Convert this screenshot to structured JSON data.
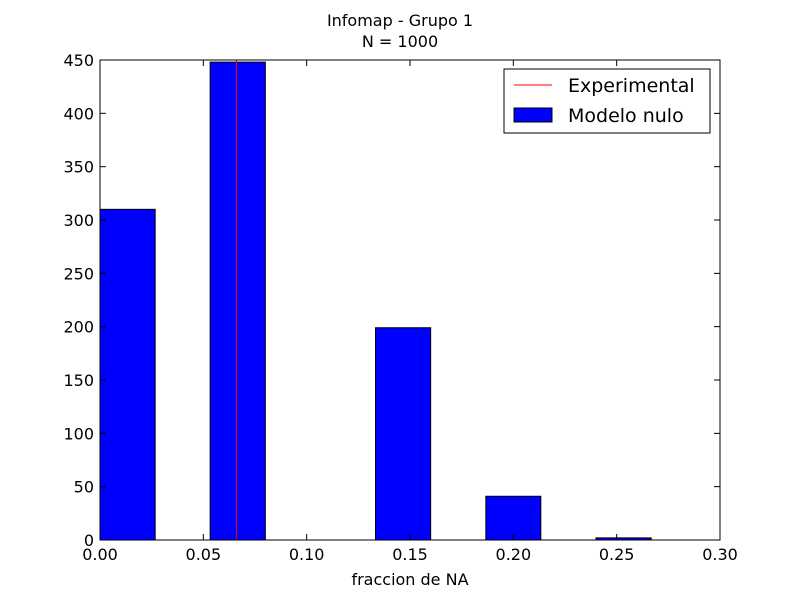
{
  "chart_data": {
    "type": "bar",
    "title": "Infomap - Grupo 1",
    "subtitle": "N = 1000",
    "xlabel": "fraccion de NA",
    "ylabel": "",
    "xlim": [
      0.0,
      0.3
    ],
    "ylim": [
      0,
      450
    ],
    "xticks": [
      "0.00",
      "0.05",
      "0.10",
      "0.15",
      "0.20",
      "0.25",
      "0.30"
    ],
    "yticks": [
      "0",
      "50",
      "100",
      "150",
      "200",
      "250",
      "300",
      "350",
      "400",
      "450"
    ],
    "grid": false,
    "legend_position": "top-right",
    "series": [
      {
        "name": "Modelo nulo",
        "kind": "histogram",
        "color": "#0000ff",
        "bins": [
          {
            "x0": 0.0,
            "x1": 0.0267,
            "value": 310
          },
          {
            "x0": 0.0533,
            "x1": 0.08,
            "value": 448
          },
          {
            "x0": 0.1333,
            "x1": 0.16,
            "value": 199
          },
          {
            "x0": 0.1867,
            "x1": 0.2133,
            "value": 41
          },
          {
            "x0": 0.24,
            "x1": 0.2667,
            "value": 2
          }
        ]
      },
      {
        "name": "Experimental",
        "kind": "vline",
        "color": "#ff0000",
        "x": 0.066
      }
    ]
  }
}
